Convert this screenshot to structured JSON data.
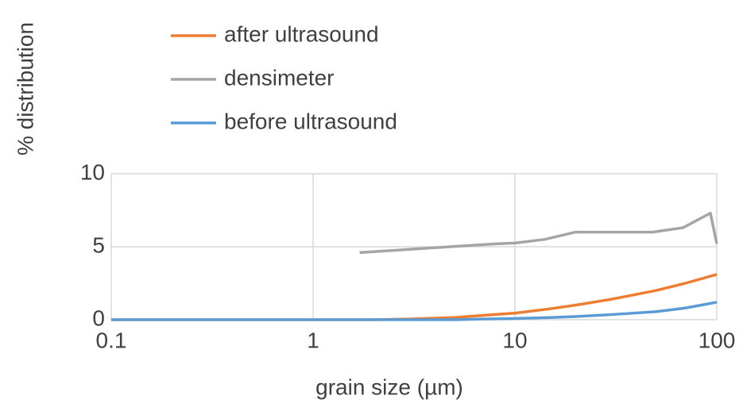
{
  "chart_data": {
    "type": "line",
    "xlabel": "grain size (µm)",
    "ylabel": "% distribution",
    "xscale": "log",
    "xlim": [
      0.1,
      100
    ],
    "xticks": [
      0.1,
      1,
      10,
      100
    ],
    "ylim": [
      0,
      10
    ],
    "yticks": [
      0,
      5,
      10
    ],
    "grid": true,
    "legend": "top",
    "series": [
      {
        "name": "after ultrasound",
        "color": "#ed7d31",
        "x": [
          0.1,
          0.2,
          0.5,
          1,
          2,
          3,
          5,
          7,
          10,
          15,
          20,
          30,
          50,
          70,
          100
        ],
        "values": [
          0,
          0,
          0,
          0,
          0,
          0.05,
          0.15,
          0.3,
          0.45,
          0.75,
          1.0,
          1.4,
          2.0,
          2.5,
          3.1
        ]
      },
      {
        "name": "densimeter",
        "color": "#a5a5a5",
        "x": [
          1.7,
          8,
          10,
          14,
          20,
          48,
          68,
          93,
          100
        ],
        "values": [
          4.6,
          5.2,
          5.25,
          5.5,
          6.0,
          6.0,
          6.3,
          7.3,
          5.2
        ]
      },
      {
        "name": "before ultrasound",
        "color": "#5b9bd5",
        "x": [
          0.1,
          0.2,
          0.5,
          1,
          2,
          3,
          5,
          7,
          10,
          15,
          20,
          30,
          50,
          70,
          100
        ],
        "values": [
          0,
          0,
          0,
          0,
          0,
          0,
          0,
          0.05,
          0.08,
          0.15,
          0.22,
          0.35,
          0.55,
          0.8,
          1.2
        ]
      }
    ]
  }
}
